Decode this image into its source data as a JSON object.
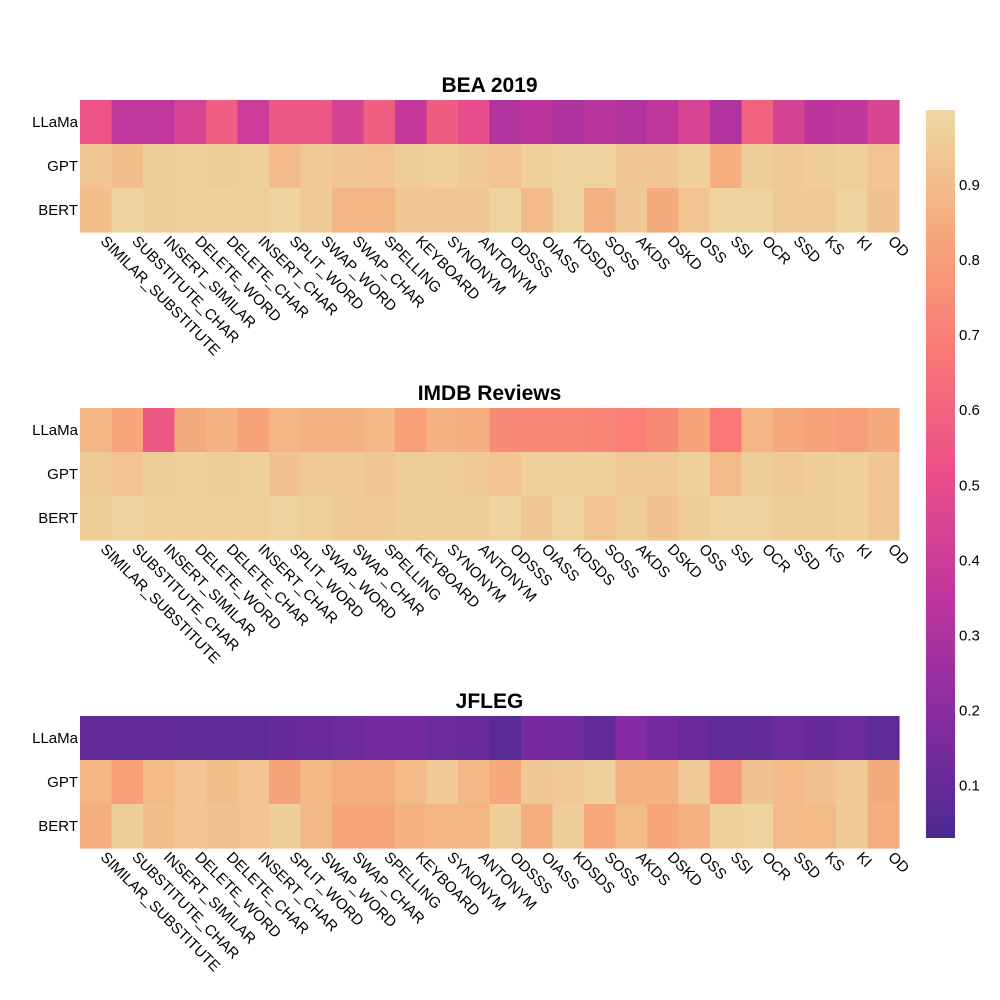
{
  "chart_data": [
    {
      "type": "heatmap",
      "title": "BEA 2019",
      "columns": [
        "SIMILAR_SUBSTITUTE",
        "SUBSTITUTE_CHAR",
        "INSERT_SIMILAR",
        "DELETE_WORD",
        "DELETE_CHAR",
        "INSERT_CHAR",
        "SPLIT_WORD",
        "SWAP_WORD",
        "SWAP_CHAR",
        "SPELLING",
        "KEYBOARD",
        "SYNONYM",
        "ANTONYM",
        "ODSSS",
        "OIASS",
        "KDSDS",
        "SOSS",
        "AKDS",
        "DSKD",
        "OSS",
        "SSI",
        "OCR",
        "SSD",
        "KS",
        "KI",
        "OD"
      ],
      "rows": [
        "LLaMa",
        "GPT",
        "BERT"
      ],
      "values": [
        [
          0.53,
          0.36,
          0.36,
          0.44,
          0.58,
          0.39,
          0.55,
          0.55,
          0.43,
          0.58,
          0.37,
          0.57,
          0.5,
          0.31,
          0.34,
          0.3,
          0.33,
          0.31,
          0.35,
          0.44,
          0.31,
          0.59,
          0.43,
          0.34,
          0.35,
          0.45
        ],
        [
          0.94,
          0.91,
          0.96,
          0.97,
          0.96,
          0.97,
          0.9,
          0.95,
          0.94,
          0.93,
          0.96,
          0.97,
          0.95,
          0.93,
          0.97,
          0.98,
          0.98,
          0.94,
          0.94,
          0.97,
          0.86,
          0.96,
          0.95,
          0.96,
          0.97,
          0.93
        ],
        [
          0.91,
          0.98,
          0.96,
          0.97,
          0.97,
          0.97,
          0.98,
          0.95,
          0.88,
          0.88,
          0.94,
          0.94,
          0.94,
          0.98,
          0.9,
          0.98,
          0.87,
          0.94,
          0.85,
          0.93,
          0.98,
          0.98,
          0.95,
          0.95,
          0.98,
          0.92
        ]
      ]
    },
    {
      "type": "heatmap",
      "title": "IMDB Reviews",
      "columns": [
        "SIMILAR_SUBSTITUTE",
        "SUBSTITUTE_CHAR",
        "INSERT_SIMILAR",
        "DELETE_WORD",
        "DELETE_CHAR",
        "INSERT_CHAR",
        "SPLIT_WORD",
        "SWAP_WORD",
        "SWAP_CHAR",
        "SPELLING",
        "KEYBOARD",
        "SYNONYM",
        "ANTONYM",
        "ODSSS",
        "OIASS",
        "KDSDS",
        "SOSS",
        "AKDS",
        "DSKD",
        "OSS",
        "SSI",
        "OCR",
        "SSD",
        "KS",
        "KI",
        "OD"
      ],
      "rows": [
        "LLaMa",
        "GPT",
        "BERT"
      ],
      "values": [
        [
          0.88,
          0.83,
          0.55,
          0.85,
          0.87,
          0.82,
          0.88,
          0.87,
          0.87,
          0.89,
          0.81,
          0.87,
          0.86,
          0.74,
          0.73,
          0.73,
          0.72,
          0.7,
          0.74,
          0.82,
          0.68,
          0.88,
          0.84,
          0.82,
          0.8,
          0.84
        ],
        [
          0.95,
          0.93,
          0.96,
          0.97,
          0.96,
          0.97,
          0.92,
          0.95,
          0.95,
          0.94,
          0.96,
          0.96,
          0.95,
          0.93,
          0.97,
          0.97,
          0.97,
          0.95,
          0.95,
          0.97,
          0.9,
          0.96,
          0.95,
          0.96,
          0.97,
          0.94
        ],
        [
          0.96,
          0.98,
          0.97,
          0.97,
          0.97,
          0.97,
          0.98,
          0.97,
          0.95,
          0.95,
          0.96,
          0.96,
          0.96,
          0.98,
          0.94,
          0.98,
          0.93,
          0.96,
          0.92,
          0.96,
          0.98,
          0.98,
          0.96,
          0.96,
          0.97,
          0.94
        ]
      ]
    },
    {
      "type": "heatmap",
      "title": "JFLEG",
      "columns": [
        "SIMILAR_SUBSTITUTE",
        "SUBSTITUTE_CHAR",
        "INSERT_SIMILAR",
        "DELETE_WORD",
        "DELETE_CHAR",
        "INSERT_CHAR",
        "SPLIT_WORD",
        "SWAP_WORD",
        "SWAP_CHAR",
        "SPELLING",
        "KEYBOARD",
        "SYNONYM",
        "ANTONYM",
        "ODSSS",
        "OIASS",
        "KDSDS",
        "SOSS",
        "AKDS",
        "DSKD",
        "OSS",
        "SSI",
        "OCR",
        "SSD",
        "KS",
        "KI",
        "OD"
      ],
      "rows": [
        "LLaMa",
        "GPT",
        "BERT"
      ],
      "values": [
        [
          0.09,
          0.09,
          0.09,
          0.08,
          0.08,
          0.08,
          0.1,
          0.11,
          0.12,
          0.14,
          0.14,
          0.12,
          0.11,
          0.07,
          0.15,
          0.14,
          0.09,
          0.19,
          0.14,
          0.11,
          0.08,
          0.09,
          0.12,
          0.1,
          0.12,
          0.08
        ],
        [
          0.88,
          0.81,
          0.9,
          0.93,
          0.91,
          0.93,
          0.82,
          0.89,
          0.86,
          0.86,
          0.9,
          0.95,
          0.89,
          0.84,
          0.94,
          0.95,
          0.97,
          0.87,
          0.87,
          0.95,
          0.79,
          0.92,
          0.9,
          0.92,
          0.95,
          0.85
        ],
        [
          0.86,
          0.96,
          0.91,
          0.93,
          0.92,
          0.93,
          0.96,
          0.89,
          0.83,
          0.83,
          0.87,
          0.88,
          0.88,
          0.96,
          0.86,
          0.96,
          0.84,
          0.9,
          0.83,
          0.87,
          0.97,
          0.98,
          0.9,
          0.9,
          0.95,
          0.86
        ]
      ]
    }
  ],
  "colorbar": {
    "range": [
      0.03,
      1.0
    ],
    "ticks": [
      0.1,
      0.2,
      0.3,
      0.4,
      0.5,
      0.6,
      0.7,
      0.8,
      0.9
    ],
    "tick_labels": [
      "0.1",
      "0.2",
      "0.3",
      "0.4",
      "0.5",
      "0.6",
      "0.7",
      "0.8",
      "0.9"
    ],
    "colorscale": [
      "#4b2991",
      "#872ca2",
      "#c0369d",
      "#ea4f88",
      "#fa7876",
      "#f6a97a",
      "#edd9a3"
    ]
  }
}
